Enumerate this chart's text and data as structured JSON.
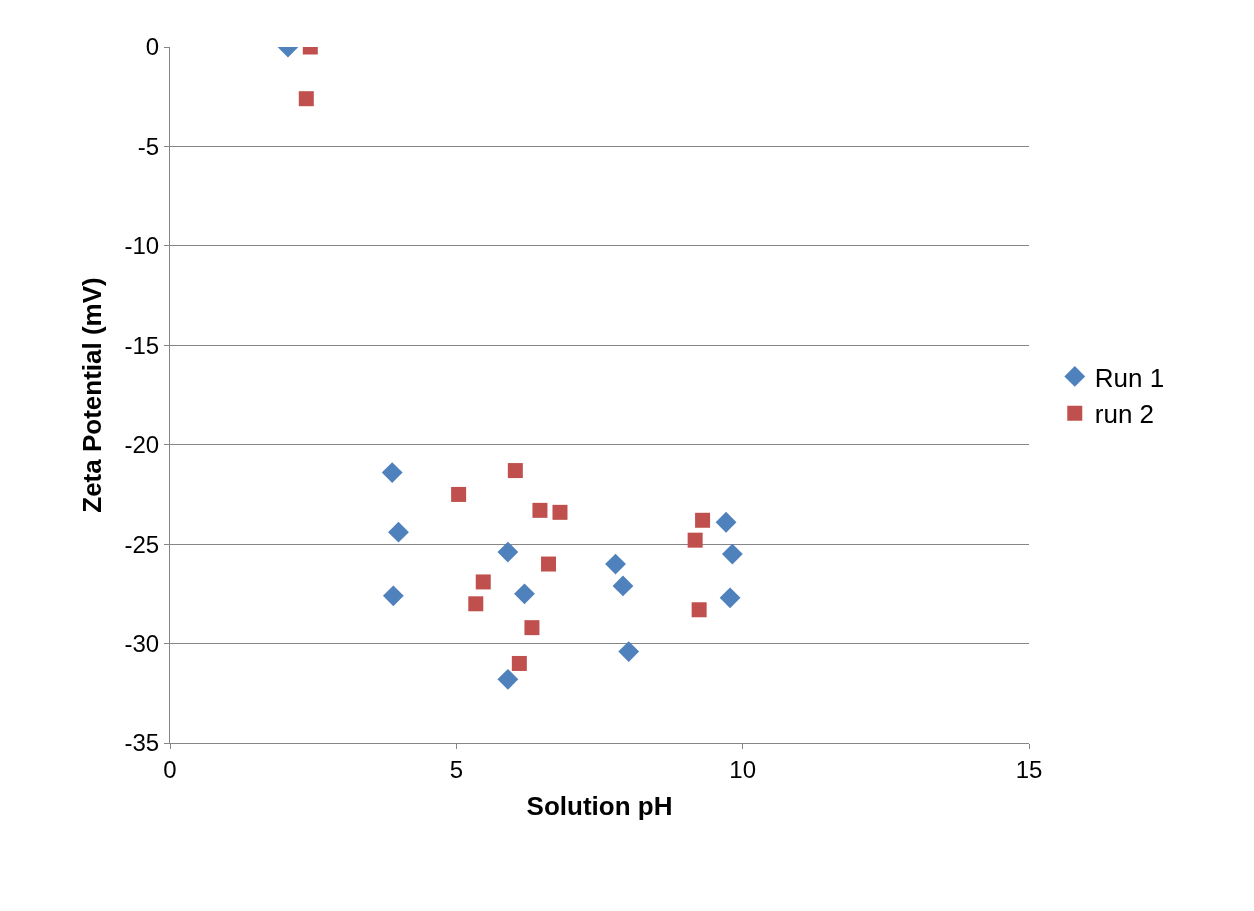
{
  "chart_data": {
    "type": "scatter",
    "xlabel": "Solution pH",
    "ylabel": "Zeta Potential (mV)",
    "xlim": [
      0,
      15
    ],
    "xticks": [
      0,
      5,
      10,
      15
    ],
    "ylim": [
      -35,
      0
    ],
    "yticks": [
      -35,
      -30,
      -25,
      -20,
      -15,
      -10,
      -5,
      0
    ],
    "grid": "y",
    "legend": "right",
    "series": [
      {
        "name": "Run 1",
        "color": "#4f81bd",
        "marker": "diamond",
        "x": [
          2.06,
          3.88,
          3.99,
          3.9,
          5.9,
          6.19,
          5.9,
          7.78,
          7.91,
          8.01,
          9.71,
          9.82,
          9.78
        ],
        "values": [
          0,
          -21.4,
          -24.4,
          -27.6,
          -25.4,
          -27.5,
          -31.8,
          -26.0,
          -27.1,
          -30.4,
          -23.9,
          -25.5,
          -27.7
        ]
      },
      {
        "name": "run 2",
        "color": "#c0504d",
        "marker": "square",
        "x": [
          2.45,
          2.38,
          5.04,
          6.03,
          6.46,
          6.81,
          5.47,
          5.34,
          6.61,
          6.32,
          6.1,
          9.17,
          9.3,
          9.24
        ],
        "values": [
          0,
          -2.6,
          -22.5,
          -21.3,
          -23.3,
          -23.4,
          -26.9,
          -28.0,
          -26.0,
          -29.2,
          -31.0,
          -24.8,
          -23.8,
          -28.3
        ]
      }
    ]
  }
}
